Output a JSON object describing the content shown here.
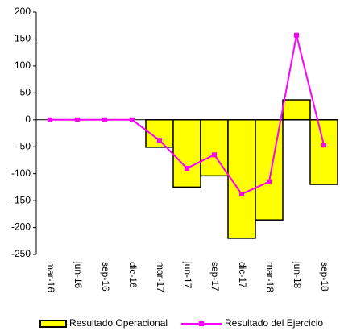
{
  "chart_data": {
    "type": "combo",
    "categories": [
      "mar-16",
      "jun-16",
      "sep-16",
      "dic-16",
      "mar-17",
      "jun-17",
      "sep-17",
      "dic-17",
      "mar-18",
      "jun-18",
      "sep-18"
    ],
    "series": [
      {
        "name": "Resultado Operacional",
        "type": "bar",
        "color": "#ffff00",
        "values": [
          0,
          0,
          0,
          0,
          -51,
          -125,
          -104,
          -220,
          -186,
          37,
          -120
        ]
      },
      {
        "name": "Resultado del Ejercicio",
        "type": "line",
        "color": "#ff00ff",
        "values": [
          0,
          0,
          0,
          0,
          -38,
          -90,
          -65,
          -138,
          -115,
          157,
          -47
        ]
      }
    ],
    "ylim": [
      -250,
      200
    ],
    "yticks": [
      -250,
      -200,
      -150,
      -100,
      -50,
      0,
      50,
      100,
      150,
      200
    ],
    "legend": "bottom"
  }
}
